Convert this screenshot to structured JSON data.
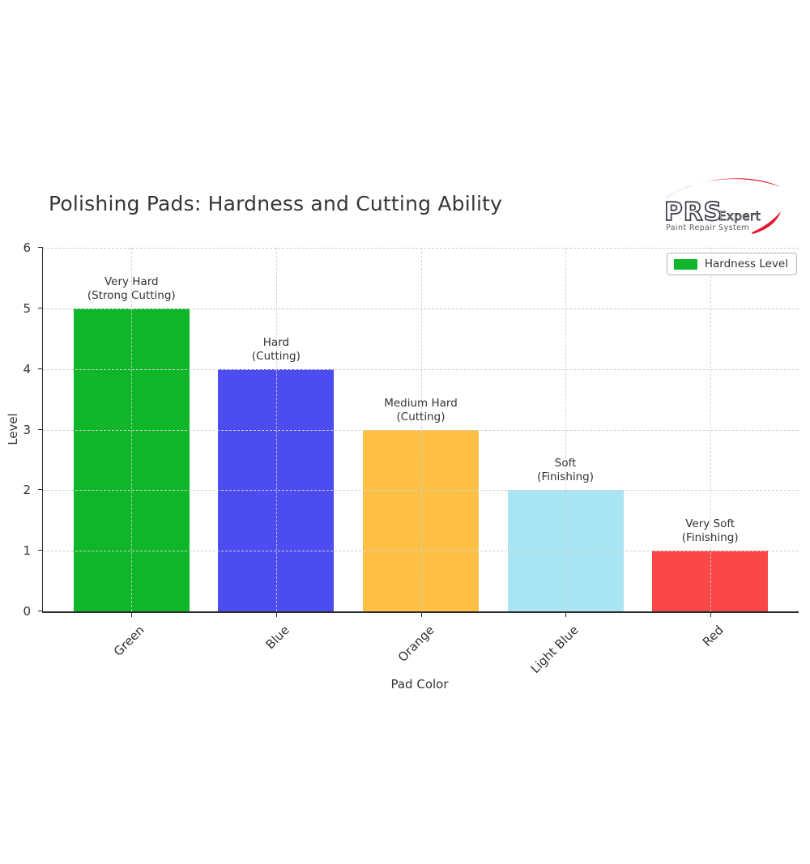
{
  "title": "Polishing Pads: Hardness and Cutting Ability",
  "logo": {
    "brand": "PRS",
    "brand_suffix": "Expert",
    "tagline": "Paint Repair System",
    "swoosh_color": "#e31a2d",
    "text_color": "#3c3c46"
  },
  "legend": {
    "label": "Hardness Level",
    "swatch_color": "#0fb62a"
  },
  "chart_data": {
    "type": "bar",
    "title": "Polishing Pads: Hardness and Cutting Ability",
    "categories": [
      "Green",
      "Blue",
      "Orange",
      "Light Blue",
      "Red"
    ],
    "values": [
      5,
      4,
      3,
      2,
      1
    ],
    "bar_colors": [
      "#0fb62a",
      "#4c4cf0",
      "#fec044",
      "#a9e5f3",
      "#fa4848"
    ],
    "annotations": [
      [
        "Very Hard",
        "(Strong Cutting)"
      ],
      [
        "Hard",
        "(Cutting)"
      ],
      [
        "Medium Hard",
        "(Cutting)"
      ],
      [
        "Soft",
        "(Finishing)"
      ],
      [
        "Very Soft",
        "(Finishing)"
      ]
    ],
    "xlabel": "Pad Color",
    "ylabel": "Level",
    "ylim": [
      0,
      6
    ],
    "yticks": [
      0,
      1,
      2,
      3,
      4,
      5,
      6
    ],
    "grid": "dashed",
    "legend_position": "upper right",
    "legend_label": "Hardness Level"
  }
}
